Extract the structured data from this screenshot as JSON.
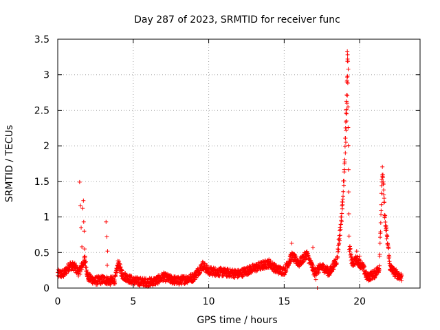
{
  "chart_data": {
    "type": "scatter",
    "title": "Day 287 of 2023, SRMTID for receiver func",
    "xlabel": "GPS time / hours",
    "ylabel": "SRMTID / TECUs",
    "xlim": [
      0,
      24
    ],
    "ylim": [
      0,
      3.5
    ],
    "x_ticks": [
      0,
      5,
      10,
      15,
      20
    ],
    "y_ticks": [
      0,
      0.5,
      1,
      1.5,
      2,
      2.5,
      3,
      3.5
    ],
    "x_tick_labels": [
      "0",
      "5",
      "10",
      "15",
      "20"
    ],
    "y_tick_labels": [
      "0",
      "0.5",
      "1",
      "1.5",
      "2",
      "2.5",
      "3",
      "3.5"
    ],
    "grid": true,
    "marker": "+",
    "marker_color": "#ff0000",
    "series": [
      {
        "name": "SRMTID",
        "baseline_profile": [
          [
            0.0,
            0.2
          ],
          [
            0.4,
            0.2
          ],
          [
            0.8,
            0.32
          ],
          [
            1.1,
            0.3
          ],
          [
            1.4,
            0.22
          ],
          [
            1.8,
            0.4
          ],
          [
            2.0,
            0.15
          ],
          [
            2.5,
            0.1
          ],
          [
            3.0,
            0.12
          ],
          [
            3.5,
            0.1
          ],
          [
            3.8,
            0.12
          ],
          [
            4.0,
            0.35
          ],
          [
            4.3,
            0.18
          ],
          [
            5.0,
            0.1
          ],
          [
            6.0,
            0.08
          ],
          [
            6.5,
            0.1
          ],
          [
            7.0,
            0.16
          ],
          [
            7.5,
            0.12
          ],
          [
            8.0,
            0.1
          ],
          [
            9.0,
            0.15
          ],
          [
            9.6,
            0.32
          ],
          [
            10.0,
            0.24
          ],
          [
            11.0,
            0.22
          ],
          [
            12.0,
            0.2
          ],
          [
            13.0,
            0.28
          ],
          [
            14.0,
            0.35
          ],
          [
            14.5,
            0.26
          ],
          [
            15.0,
            0.24
          ],
          [
            15.5,
            0.45
          ],
          [
            16.0,
            0.35
          ],
          [
            16.5,
            0.48
          ],
          [
            17.0,
            0.22
          ],
          [
            17.5,
            0.3
          ],
          [
            18.0,
            0.22
          ],
          [
            18.5,
            0.4
          ],
          [
            18.8,
            1.0
          ],
          [
            19.0,
            1.7
          ],
          [
            19.2,
            3.2
          ],
          [
            19.3,
            0.6
          ],
          [
            19.5,
            0.35
          ],
          [
            19.8,
            0.4
          ],
          [
            20.2,
            0.3
          ],
          [
            20.5,
            0.15
          ],
          [
            21.0,
            0.2
          ],
          [
            21.3,
            0.28
          ],
          [
            21.5,
            1.68
          ],
          [
            21.7,
            0.9
          ],
          [
            21.9,
            0.55
          ],
          [
            22.0,
            0.3
          ],
          [
            22.3,
            0.22
          ],
          [
            22.8,
            0.15
          ]
        ],
        "extra_points": [
          [
            1.45,
            1.49
          ],
          [
            1.5,
            1.16
          ],
          [
            1.55,
            0.85
          ],
          [
            1.6,
            0.58
          ],
          [
            1.65,
            1.12
          ],
          [
            1.7,
            1.23
          ],
          [
            1.72,
            0.93
          ],
          [
            1.75,
            0.8
          ],
          [
            1.78,
            0.55
          ],
          [
            1.8,
            0.45
          ],
          [
            3.2,
            0.93
          ],
          [
            3.25,
            0.72
          ],
          [
            3.3,
            0.52
          ],
          [
            3.28,
            0.32
          ],
          [
            15.5,
            0.63
          ],
          [
            16.9,
            0.57
          ],
          [
            17.2,
            0.0
          ],
          [
            17.1,
            0.12
          ],
          [
            19.8,
            0.52
          ],
          [
            20.0,
            0.45
          ],
          [
            19.18,
            3.33
          ],
          [
            19.2,
            3.28
          ],
          [
            19.22,
            3.19
          ],
          [
            19.24,
            3.08
          ],
          [
            19.2,
            2.98
          ],
          [
            19.18,
            2.71
          ],
          [
            19.16,
            2.6
          ],
          [
            19.14,
            2.45
          ],
          [
            19.12,
            2.35
          ],
          [
            19.1,
            2.22
          ],
          [
            19.08,
            2.05
          ],
          [
            19.05,
            1.9
          ]
        ]
      }
    ]
  }
}
